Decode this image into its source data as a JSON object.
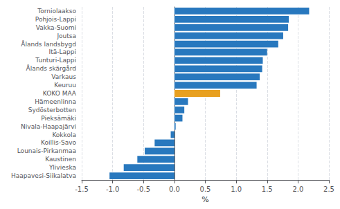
{
  "chart_data": {
    "type": "bar",
    "orientation": "horizontal",
    "categories": [
      "Haapavesi-Siikalatva",
      "Ylivieska",
      "Kaustinen",
      "Lounais-Pirkanmaa",
      "Koillis-Savo",
      "Kokkola",
      "Nivala-Haapajärvi",
      "Pieksämäki",
      "Sydösterbotten",
      "Hämeenlinna",
      "KOKO MAA",
      "Keuruu",
      "Varkaus",
      "Ålands skärgård",
      "Tunturi-Lappi",
      "Itä-Lappi",
      "Ålands landsbygd",
      "Joutsa",
      "Vakka-Suomi",
      "Pohjois-Lappi",
      "Torniolaakso"
    ],
    "values": [
      -1.05,
      -0.82,
      -0.6,
      -0.48,
      -0.32,
      -0.06,
      0.02,
      0.13,
      0.16,
      0.22,
      0.74,
      1.33,
      1.38,
      1.42,
      1.43,
      1.5,
      1.68,
      1.76,
      1.84,
      1.85,
      2.18
    ],
    "colors": [
      "#2878be",
      "#2878be",
      "#2878be",
      "#2878be",
      "#2878be",
      "#2878be",
      "#2878be",
      "#2878be",
      "#2878be",
      "#2878be",
      "#e8a020",
      "#2878be",
      "#2878be",
      "#2878be",
      "#2878be",
      "#2878be",
      "#2878be",
      "#2878be",
      "#2878be",
      "#2878be",
      "#2878be"
    ],
    "xlim": [
      -1.5,
      2.5
    ],
    "xticks": [
      -1.5,
      {
        "value": -1.0,
        "label": "-1.0"
      },
      -0.5,
      {
        "value": 0.0,
        "label": "0.0"
      },
      0.5,
      {
        "value": 1.0,
        "label": "1.0"
      },
      1.5,
      {
        "value": 2.0,
        "label": "2.0"
      },
      2.5
    ],
    "xlabel": "%",
    "grid": true
  }
}
